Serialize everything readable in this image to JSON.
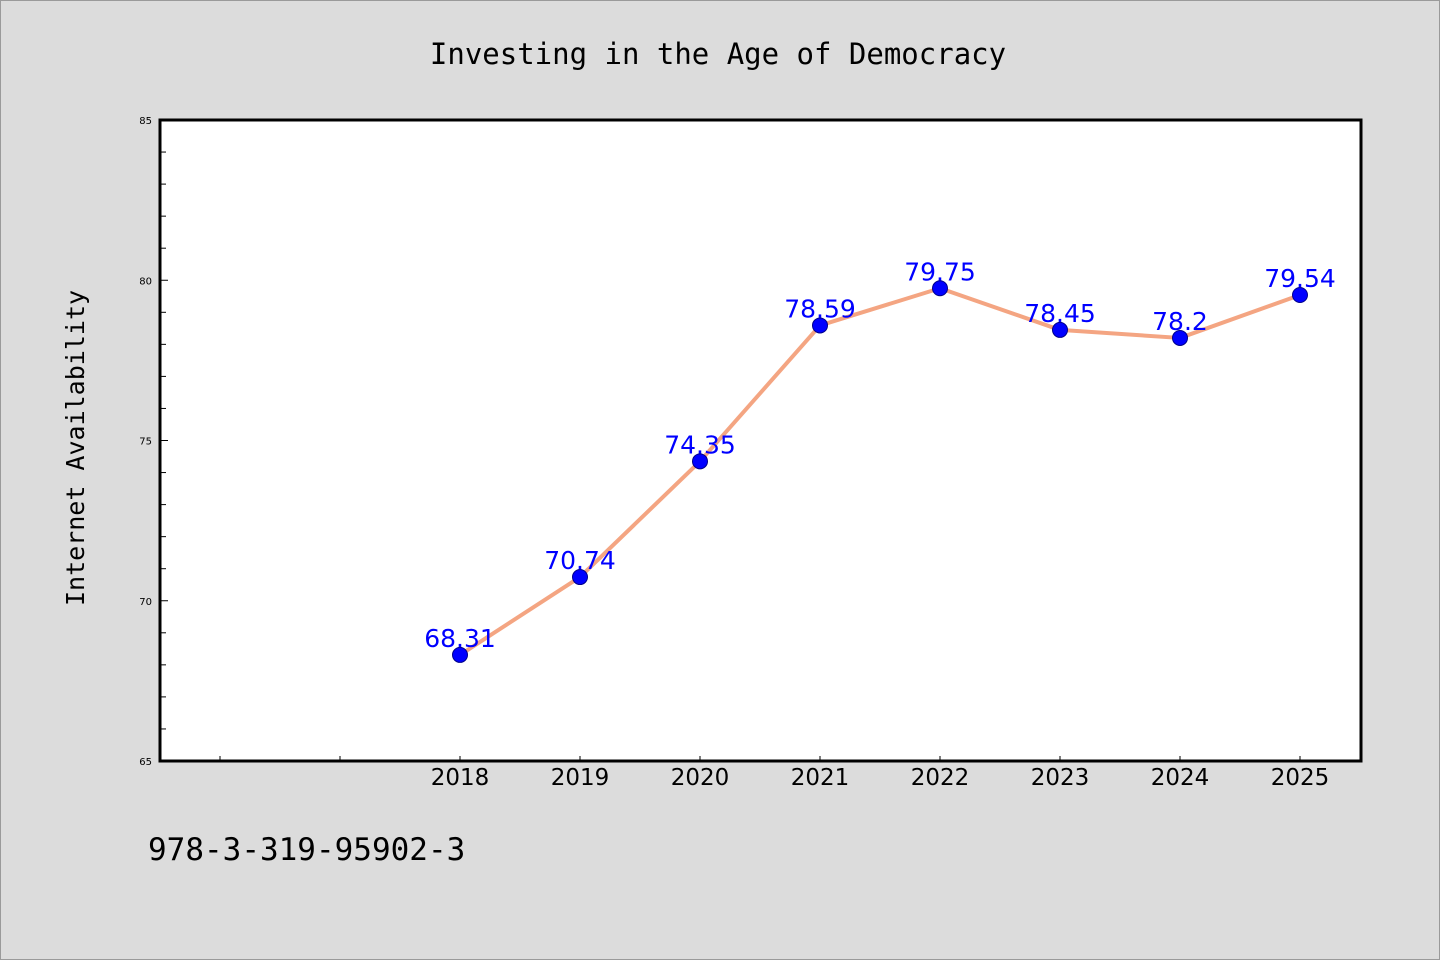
{
  "chart_data": {
    "type": "line",
    "title": "Investing in the Age of Democracy",
    "xlabel": "",
    "ylabel": "Internet Availability",
    "categories": [
      "2018",
      "2019",
      "2020",
      "2021",
      "2022",
      "2023",
      "2024",
      "2025"
    ],
    "series": [
      {
        "values": [
          68.31,
          70.74,
          74.35,
          78.59,
          79.75,
          78.45,
          78.2,
          79.54
        ],
        "data_labels": [
          "68.31",
          "70.74",
          "74.35",
          "78.59",
          "79.75",
          "78.45",
          "78.2",
          "79.54"
        ]
      }
    ],
    "ylim": [
      65,
      85
    ],
    "y_ticks": [
      65,
      70,
      75,
      80,
      85
    ],
    "y_tick_labels": [
      "65",
      "70",
      "75",
      "80",
      "85"
    ],
    "grid": false,
    "legend": "none",
    "colors": {
      "line": "#f4a582",
      "marker": "#0000ff",
      "data_label": "#0000ff",
      "plot_background": "#ffffff",
      "figure_background": "#dcdcdc"
    }
  },
  "footer": {
    "isbn": "978-3-319-95902-3"
  }
}
